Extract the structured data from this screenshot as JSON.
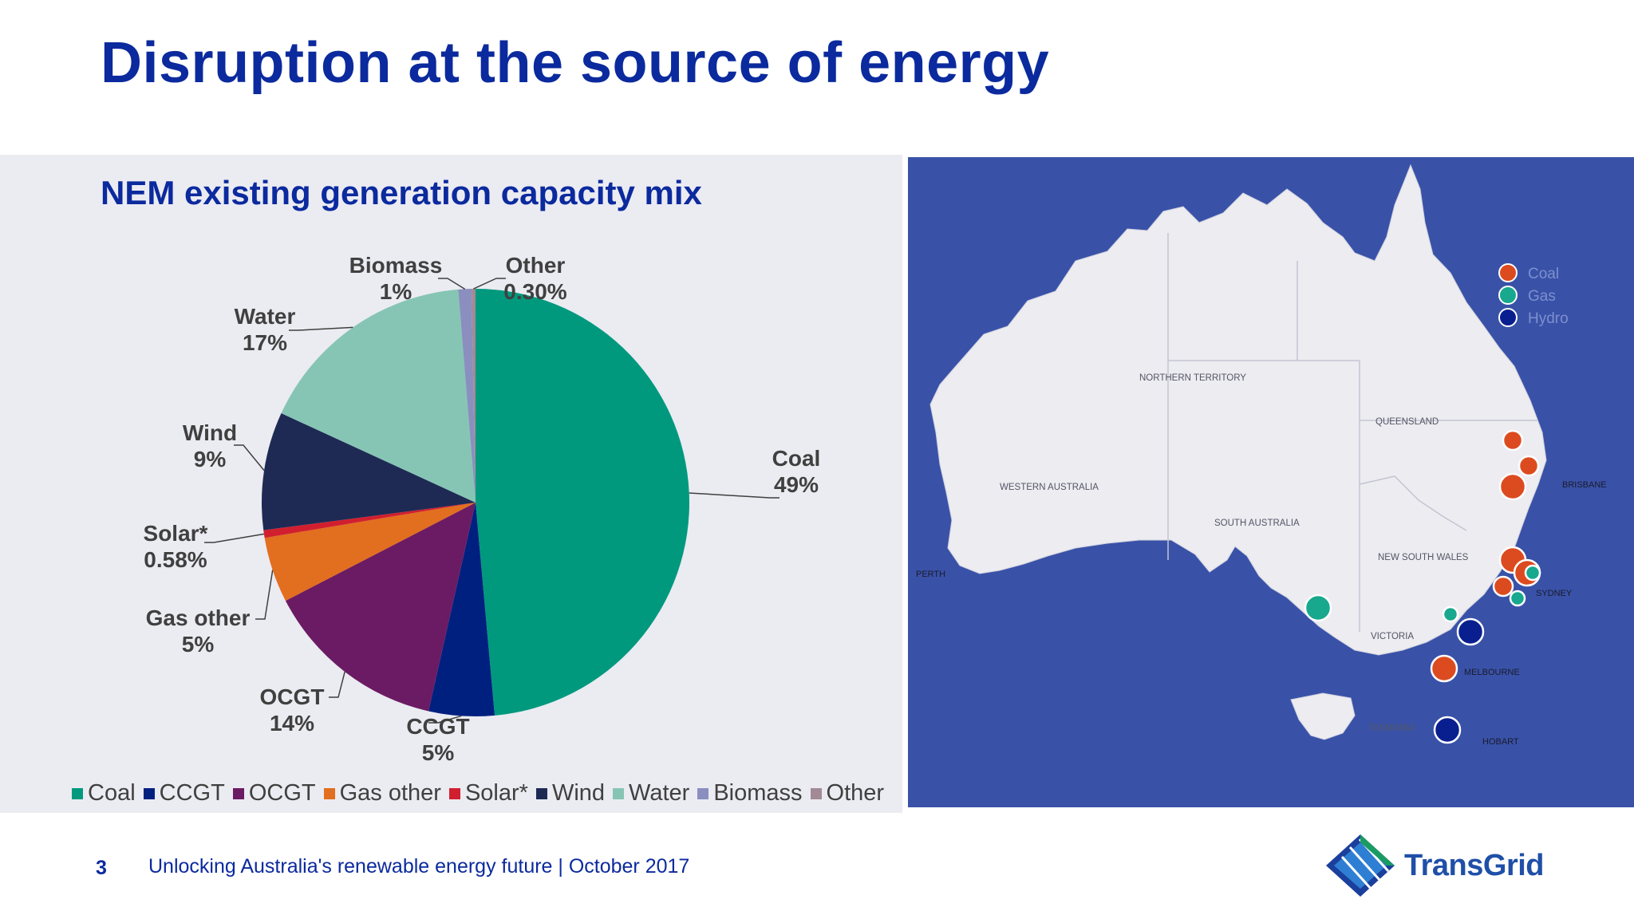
{
  "title": "Disruption at the source of energy",
  "chart_data": {
    "type": "pie",
    "title": "NEM existing generation capacity mix",
    "slices": [
      {
        "label": "Coal",
        "value": 49,
        "pct_label": "49%",
        "color": "#00997e"
      },
      {
        "label": "CCGT",
        "value": 5,
        "pct_label": "5%",
        "color": "#002080"
      },
      {
        "label": "OCGT",
        "value": 14,
        "pct_label": "14%",
        "color": "#6b1b63"
      },
      {
        "label": "Gas other",
        "value": 5,
        "pct_label": "5%",
        "color": "#e26e1f"
      },
      {
        "label": "Solar*",
        "value": 0.58,
        "pct_label": "0.58%",
        "color": "#d11f2f"
      },
      {
        "label": "Wind",
        "value": 9,
        "pct_label": "9%",
        "color": "#1e2a54"
      },
      {
        "label": "Water",
        "value": 17,
        "pct_label": "17%",
        "color": "#86c5b4"
      },
      {
        "label": "Biomass",
        "value": 1,
        "pct_label": "1%",
        "color": "#8a8fbf"
      },
      {
        "label": "Other",
        "value": 0.3,
        "pct_label": "0.30%",
        "color": "#a28a95"
      }
    ],
    "legend_position": "bottom"
  },
  "map": {
    "legend": [
      {
        "label": "Coal",
        "color": "#dc4b1f"
      },
      {
        "label": "Gas",
        "color": "#17a88e"
      },
      {
        "label": "Hydro",
        "color": "#0a1f8f"
      }
    ],
    "regions": [
      "NORTHERN TERRITORY",
      "QUEENSLAND",
      "WESTERN AUSTRALIA",
      "SOUTH AUSTRALIA",
      "NEW SOUTH WALES",
      "VICTORIA",
      "TASMANIA"
    ],
    "cities": [
      "BRISBANE",
      "PERTH",
      "SYDNEY",
      "MELBOURNE",
      "HOBART"
    ],
    "plants": [
      {
        "type": "Coal",
        "size": "small"
      },
      {
        "type": "Coal",
        "size": "small"
      },
      {
        "type": "Coal",
        "size": "large"
      },
      {
        "type": "Coal",
        "size": "large"
      },
      {
        "type": "Coal",
        "size": "large"
      },
      {
        "type": "Coal",
        "size": "small"
      },
      {
        "type": "Gas",
        "size": "small"
      },
      {
        "type": "Gas",
        "size": "small"
      },
      {
        "type": "Coal",
        "size": "large"
      },
      {
        "type": "Gas",
        "size": "large"
      },
      {
        "type": "Gas",
        "size": "small"
      },
      {
        "type": "Hydro",
        "size": "large"
      },
      {
        "type": "Hydro",
        "size": "large"
      }
    ]
  },
  "footer": {
    "page_number": "3",
    "text": "Unlocking Australia's renewable energy future | October 2017",
    "logo_text": "TransGrid"
  }
}
